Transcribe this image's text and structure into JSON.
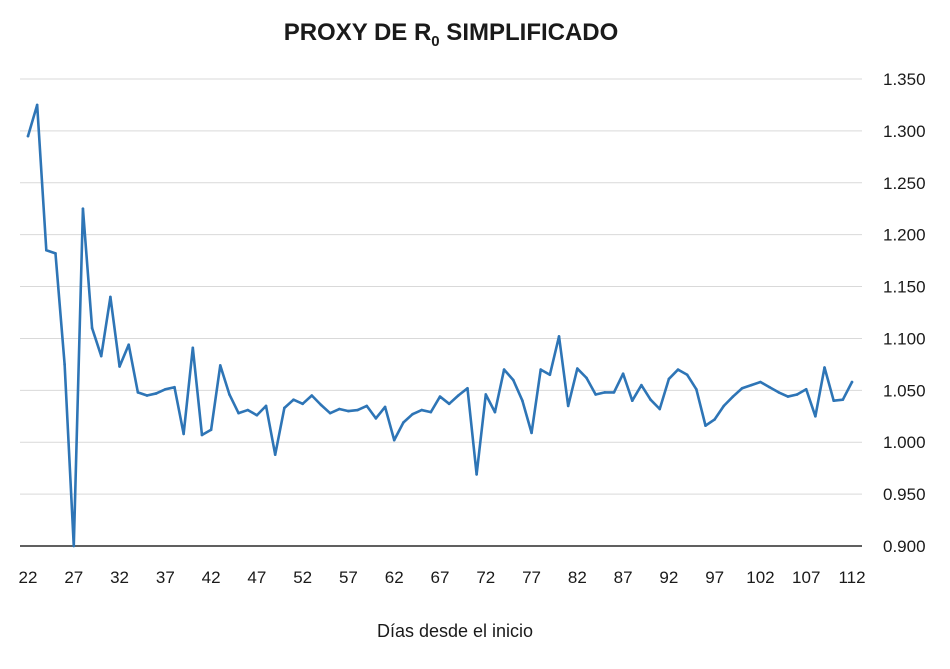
{
  "chart_data": {
    "type": "line",
    "title": {
      "prefix": "PROXY DE R",
      "subscript": "0",
      "suffix": " SIMPLIFICADO"
    },
    "xlabel": "Días  desde el inicio",
    "ylabel": "",
    "x_start": 22,
    "x_tick_values": [
      22,
      27,
      32,
      37,
      42,
      47,
      52,
      57,
      62,
      67,
      72,
      77,
      82,
      87,
      92,
      97,
      102,
      107,
      112
    ],
    "x_tick_labels": [
      "22",
      "27",
      "32",
      "37",
      "42",
      "47",
      "52",
      "57",
      "62",
      "67",
      "72",
      "77",
      "82",
      "87",
      "92",
      "97",
      "102",
      "107",
      "112"
    ],
    "ylim": [
      0.9,
      1.35
    ],
    "y_tick_values": [
      0.9,
      0.95,
      1.0,
      1.05,
      1.1,
      1.15,
      1.2,
      1.25,
      1.3,
      1.35
    ],
    "y_tick_labels": [
      "0.900",
      "0.950",
      "1.000",
      "1.050",
      "1.100",
      "1.150",
      "1.200",
      "1.250",
      "1.300",
      "1.350"
    ],
    "y_axis_position": "right",
    "grid": true,
    "legend": "none",
    "series": [
      {
        "color": "#2e75b6",
        "values": [
          1.295,
          1.325,
          1.185,
          1.182,
          1.075,
          0.9,
          1.225,
          1.11,
          1.083,
          1.14,
          1.073,
          1.094,
          1.048,
          1.045,
          1.047,
          1.051,
          1.053,
          1.008,
          1.091,
          1.007,
          1.012,
          1.074,
          1.046,
          1.028,
          1.031,
          1.026,
          1.035,
          0.988,
          1.033,
          1.041,
          1.037,
          1.045,
          1.036,
          1.028,
          1.032,
          1.03,
          1.031,
          1.035,
          1.023,
          1.034,
          1.002,
          1.019,
          1.027,
          1.031,
          1.029,
          1.044,
          1.037,
          1.045,
          1.052,
          0.969,
          1.046,
          1.029,
          1.07,
          1.06,
          1.04,
          1.009,
          1.07,
          1.065,
          1.102,
          1.035,
          1.071,
          1.062,
          1.046,
          1.048,
          1.048,
          1.066,
          1.04,
          1.055,
          1.041,
          1.032,
          1.061,
          1.07,
          1.065,
          1.051,
          1.016,
          1.022,
          1.035,
          1.044,
          1.052,
          1.055,
          1.058,
          1.053,
          1.048,
          1.044,
          1.046,
          1.051,
          1.025,
          1.072,
          1.04,
          1.041,
          1.058
        ]
      }
    ]
  }
}
